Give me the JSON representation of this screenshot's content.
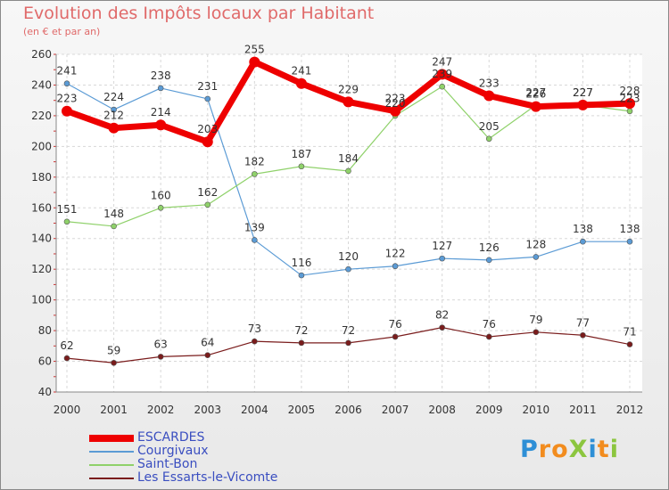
{
  "header": {
    "title": "Evolution des Impôts locaux par Habitant",
    "subtitle": "(en € et par an)"
  },
  "logo": {
    "text": "ProXiti",
    "colors": [
      "#2e8fd6",
      "#f28c1e",
      "#f28c1e",
      "#8cc63f",
      "#2e8fd6",
      "#f28c1e",
      "#8cc63f"
    ]
  },
  "chart_data": {
    "type": "line",
    "x": [
      "2000",
      "2001",
      "2002",
      "2003",
      "2004",
      "2005",
      "2006",
      "2007",
      "2008",
      "2009",
      "2010",
      "2011",
      "2012"
    ],
    "ylim": [
      40,
      260
    ],
    "yticks": [
      40,
      60,
      80,
      100,
      120,
      140,
      160,
      180,
      200,
      220,
      240,
      260
    ],
    "grid": true,
    "legend_position": "bottom-left",
    "series": [
      {
        "name": "ESCARDES",
        "color": "#ee0000",
        "width": 7,
        "values": [
          223,
          212,
          214,
          203,
          255,
          241,
          229,
          223,
          247,
          233,
          226,
          227,
          228
        ]
      },
      {
        "name": "Courgivaux",
        "color": "#5b9bd5",
        "width": 1.2,
        "values": [
          241,
          224,
          238,
          231,
          139,
          116,
          120,
          122,
          127,
          126,
          128,
          138,
          138
        ]
      },
      {
        "name": "Saint-Bon",
        "color": "#8fd16a",
        "width": 1.2,
        "values": [
          151,
          148,
          160,
          162,
          182,
          187,
          184,
          220,
          239,
          205,
          227,
          227,
          223
        ]
      },
      {
        "name": "Les Essarts-le-Vicomte",
        "color": "#7a1c1c",
        "width": 1.2,
        "values": [
          62,
          59,
          63,
          64,
          73,
          72,
          72,
          76,
          82,
          76,
          79,
          77,
          71
        ]
      }
    ]
  }
}
